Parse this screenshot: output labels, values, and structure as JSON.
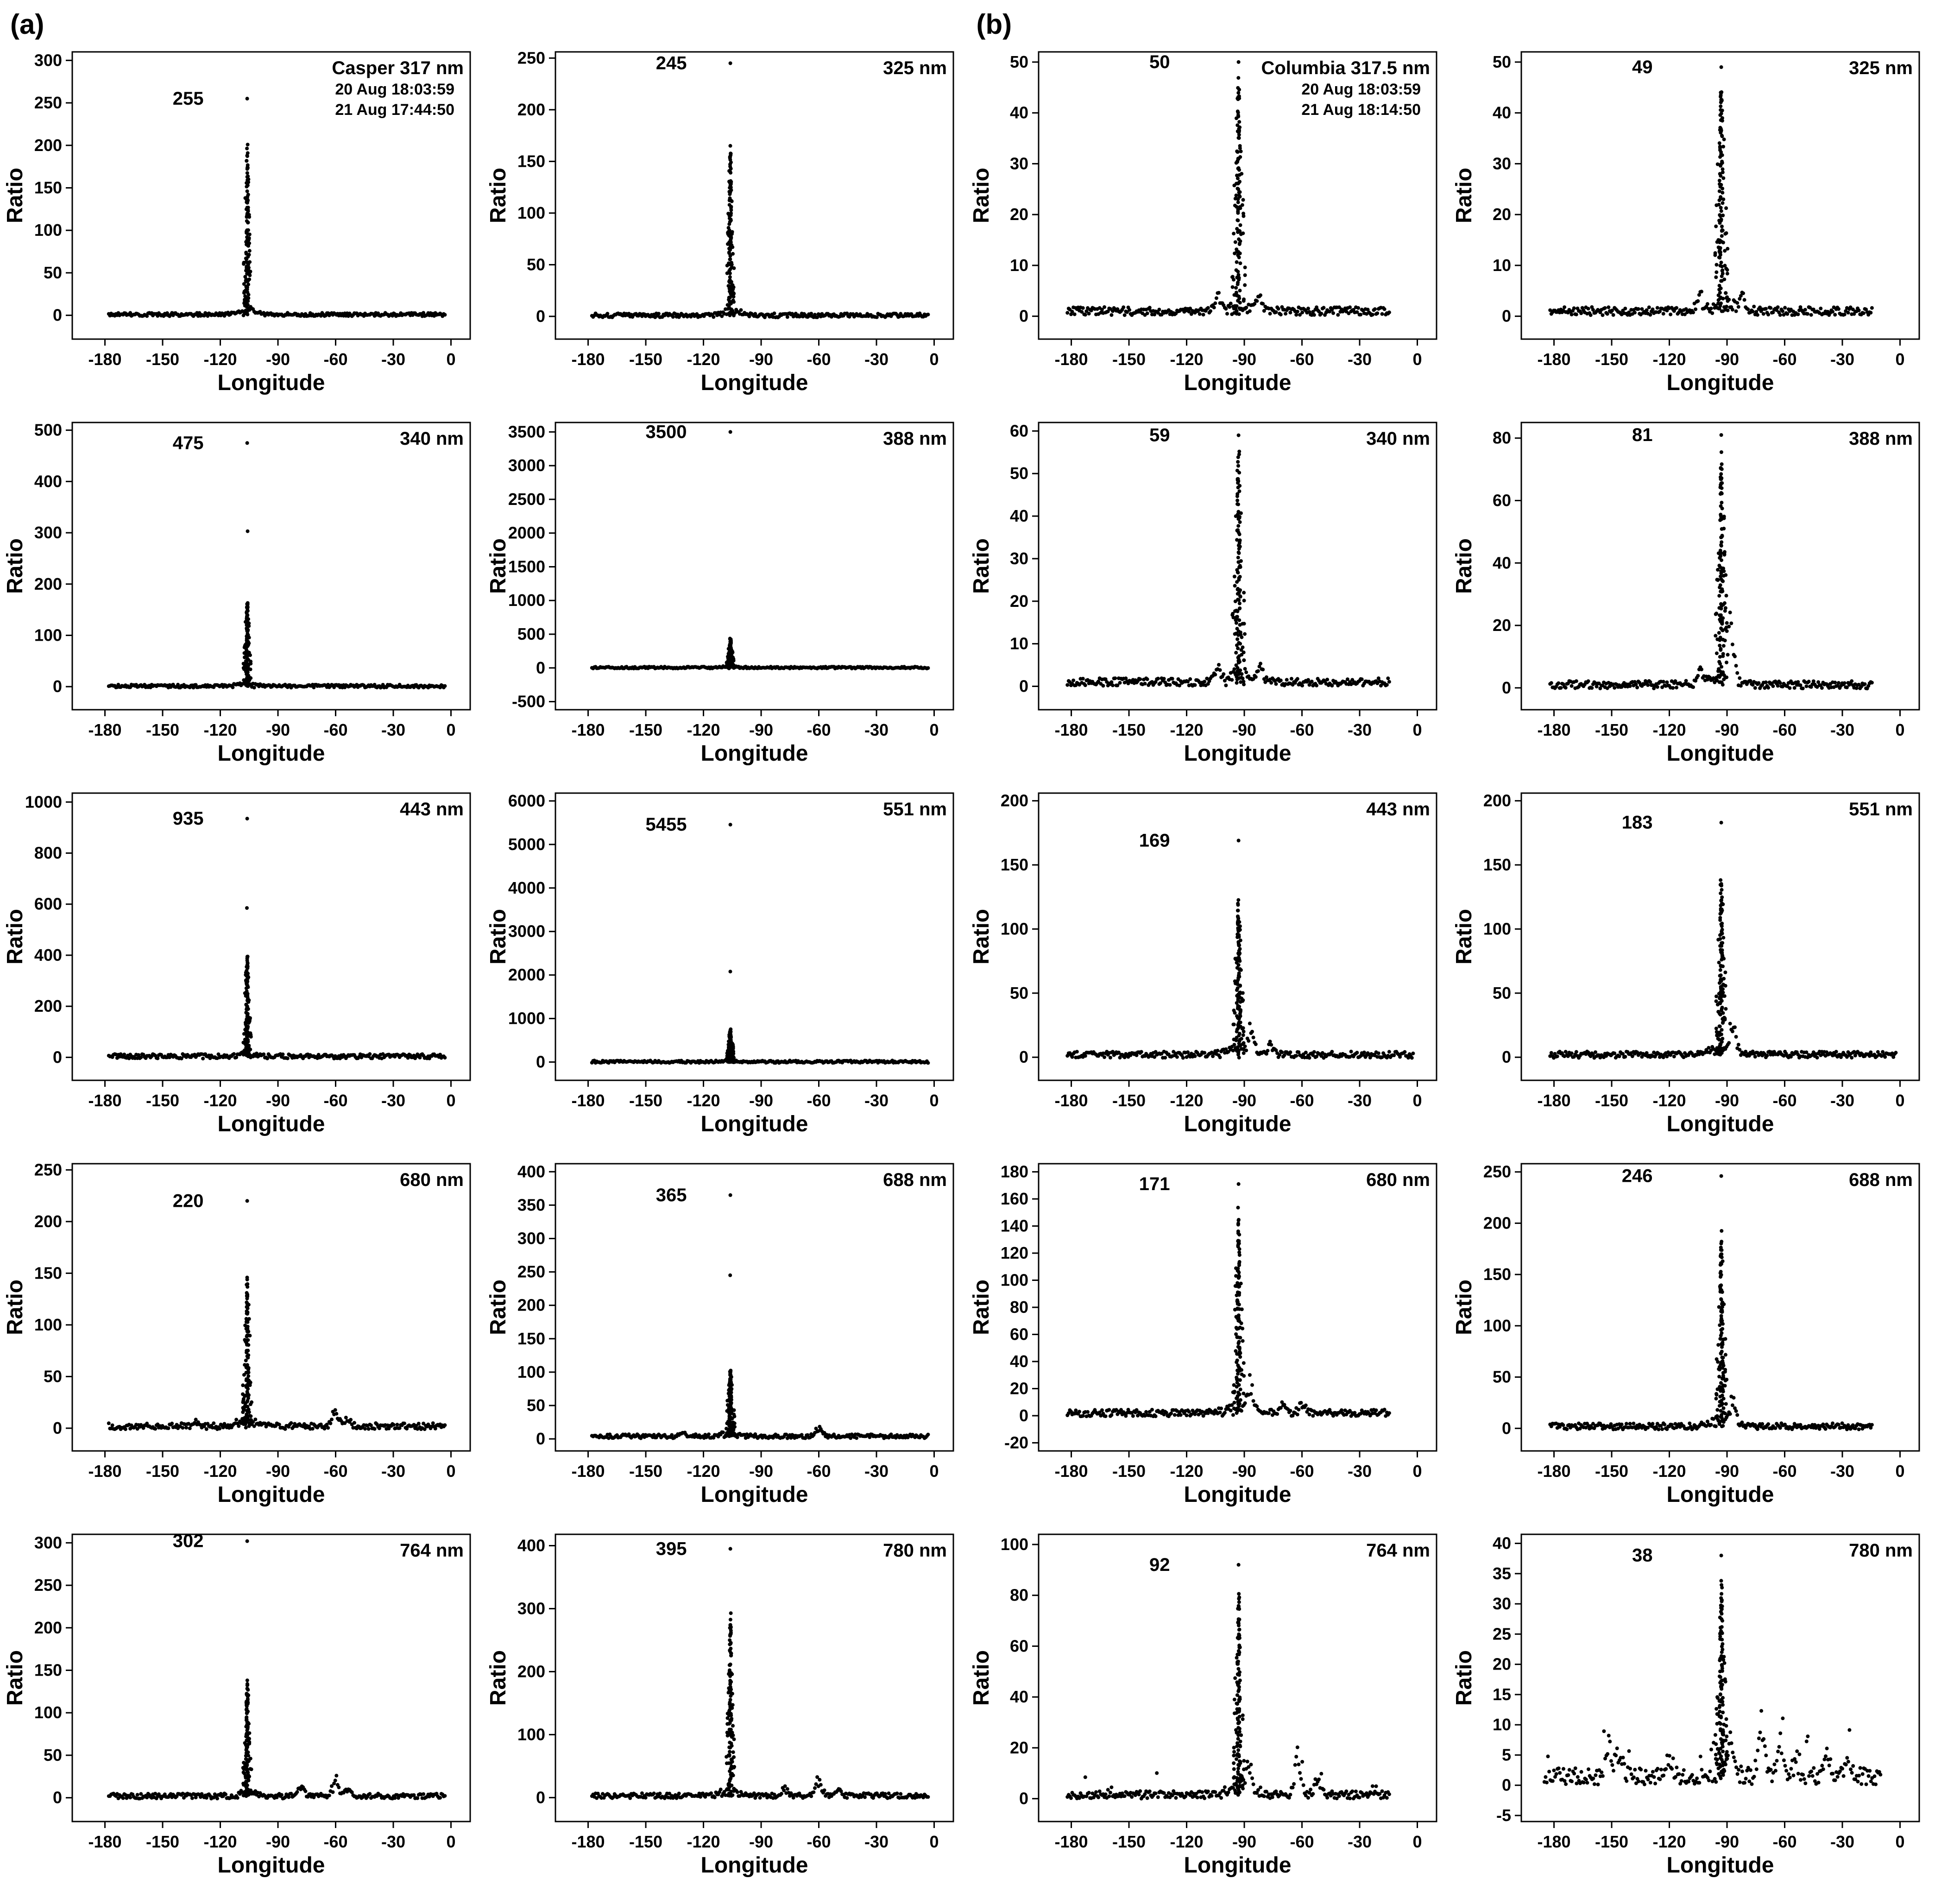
{
  "panels": [
    {
      "label": "(a)"
    },
    {
      "label": "(b)"
    }
  ],
  "axes": {
    "xlabel": "Longitude",
    "ylabel": "Ratio",
    "xticks": [
      -180,
      -150,
      -120,
      -90,
      -60,
      -30,
      0
    ],
    "xlim": [
      -197,
      10
    ]
  },
  "chart_data": [
    {
      "panel": "a",
      "type": "scatter",
      "series_label": "Casper 317 nm",
      "annotations": [
        "20 Aug 18:03:59",
        "21 Aug 17:44:50"
      ],
      "peak_value_label": "255",
      "peak_x": -106,
      "peak_y": 255,
      "peak_w": 1.5,
      "cluster_max": 195,
      "baseline": 1,
      "noise": 2,
      "spikes": 0,
      "isolated": [],
      "bumps": [],
      "x_data": [
        -178,
        -3
      ],
      "ylim": [
        -28,
        310
      ],
      "yticks": [
        0,
        50,
        100,
        150,
        200,
        250,
        300
      ]
    },
    {
      "panel": "a",
      "type": "scatter",
      "series_label": "325 nm",
      "peak_value_label": "245",
      "peak_x": -106,
      "peak_y": 245,
      "peak_w": 1.5,
      "cluster_max": 162,
      "baseline": 1,
      "noise": 2,
      "spikes": 0,
      "isolated": [],
      "bumps": [],
      "x_data": [
        -178,
        -3
      ],
      "ylim": [
        -22,
        256
      ],
      "yticks": [
        0,
        50,
        100,
        150,
        200,
        250
      ]
    },
    {
      "panel": "a",
      "type": "scatter",
      "series_label": "340 nm",
      "peak_value_label": "475",
      "peak_x": -106,
      "peak_y": 475,
      "peak_w": 1.5,
      "cluster_max": 168,
      "baseline": 1,
      "noise": 3,
      "spikes": 0,
      "isolated": [
        303
      ],
      "bumps": [],
      "x_data": [
        -178,
        -3
      ],
      "ylim": [
        -45,
        515
      ],
      "yticks": [
        0,
        100,
        200,
        300,
        400,
        500
      ]
    },
    {
      "panel": "a",
      "type": "scatter",
      "series_label": "388 nm",
      "peak_value_label": "3500",
      "peak_x": -106,
      "peak_y": 3500,
      "peak_w": 1.5,
      "cluster_max": 430,
      "baseline": 5,
      "noise": 14,
      "spikes": 0,
      "isolated": [],
      "bumps": [],
      "x_data": [
        -178,
        -3
      ],
      "ylim": [
        -620,
        3640
      ],
      "yticks": [
        -500,
        0,
        500,
        1000,
        1500,
        2000,
        2500,
        3000,
        3500
      ]
    },
    {
      "panel": "a",
      "type": "scatter",
      "series_label": "443 nm",
      "peak_value_label": "935",
      "peak_x": -106,
      "peak_y": 935,
      "peak_w": 1.6,
      "cluster_max": 395,
      "baseline": 4,
      "noise": 9,
      "spikes": 0,
      "isolated": [
        585
      ],
      "bumps": [],
      "x_data": [
        -178,
        -3
      ],
      "ylim": [
        -90,
        1035
      ],
      "yticks": [
        0,
        200,
        400,
        600,
        800,
        1000
      ]
    },
    {
      "panel": "a",
      "type": "scatter",
      "series_label": "551 nm",
      "peak_value_label": "5455",
      "peak_x": -106,
      "peak_y": 5455,
      "peak_w": 1.5,
      "cluster_max": 730,
      "baseline": 8,
      "noise": 28,
      "spikes": 0,
      "isolated": [
        2080
      ],
      "bumps": [],
      "x_data": [
        -178,
        -3
      ],
      "ylim": [
        -420,
        6180
      ],
      "yticks": [
        0,
        1000,
        2000,
        3000,
        4000,
        5000,
        6000
      ]
    },
    {
      "panel": "a",
      "type": "scatter",
      "series_label": "680 nm",
      "peak_value_label": "220",
      "peak_x": -106,
      "peak_y": 220,
      "peak_w": 1.8,
      "cluster_max": 142,
      "baseline": 2,
      "noise": 3,
      "spikes": 0,
      "isolated": [],
      "bumps": [
        {
          "x": -133,
          "h": 9
        },
        {
          "x": -60,
          "h": 18
        },
        {
          "x": -54,
          "h": 9
        }
      ],
      "x_data": [
        -178,
        -3
      ],
      "ylim": [
        -22,
        256
      ],
      "yticks": [
        0,
        50,
        100,
        150,
        200,
        250
      ]
    },
    {
      "panel": "a",
      "type": "scatter",
      "series_label": "688 nm",
      "peak_value_label": "365",
      "peak_x": -106,
      "peak_y": 365,
      "peak_w": 1.8,
      "cluster_max": 102,
      "baseline": 4,
      "noise": 3,
      "spikes": 0,
      "isolated": [
        245
      ],
      "bumps": [
        {
          "x": -130,
          "h": 7
        },
        {
          "x": -60,
          "h": 20
        }
      ],
      "x_data": [
        -178,
        -3
      ],
      "ylim": [
        -18,
        412
      ],
      "yticks": [
        0,
        50,
        100,
        150,
        200,
        250,
        300,
        350,
        400
      ]
    },
    {
      "panel": "a",
      "type": "scatter",
      "series_label": "764 nm",
      "peak_value_label": "302",
      "peak_x": -106,
      "peak_y": 302,
      "peak_w": 1.7,
      "cluster_max": 138,
      "baseline": 2,
      "noise": 3,
      "spikes": 0,
      "isolated": [],
      "bumps": [
        {
          "x": -78,
          "h": 14
        },
        {
          "x": -60,
          "h": 25
        },
        {
          "x": -54,
          "h": 12
        }
      ],
      "x_data": [
        -178,
        -3
      ],
      "ylim": [
        -28,
        310
      ],
      "yticks": [
        0,
        50,
        100,
        150,
        200,
        250,
        300
      ]
    },
    {
      "panel": "a",
      "type": "scatter",
      "series_label": "780 nm",
      "peak_value_label": "395",
      "peak_x": -106,
      "peak_y": 395,
      "peak_w": 1.6,
      "cluster_max": 285,
      "baseline": 3,
      "noise": 4,
      "spikes": 0,
      "isolated": [],
      "bumps": [
        {
          "x": -78,
          "h": 16
        },
        {
          "x": -60,
          "h": 30
        },
        {
          "x": -50,
          "h": 12
        }
      ],
      "x_data": [
        -178,
        -3
      ],
      "ylim": [
        -38,
        418
      ],
      "yticks": [
        0,
        100,
        200,
        300,
        400
      ]
    },
    {
      "panel": "b",
      "type": "scatter",
      "series_label": "Columbia 317.5 nm",
      "annotations": [
        "20 Aug 18:03:59",
        "21 Aug 18:14:50"
      ],
      "peak_value_label": "50",
      "peak_x": -93,
      "peak_y": 50,
      "peak_w": 2.6,
      "cluster_max": 46,
      "baseline": 1,
      "noise": 0.8,
      "spikes": 0,
      "isolated": [],
      "bumps": [
        {
          "x": -104,
          "h": 3
        },
        {
          "x": -82,
          "h": 3
        }
      ],
      "x_data": [
        -182,
        -14
      ],
      "ylim": [
        -4.5,
        52
      ],
      "yticks": [
        0,
        10,
        20,
        30,
        40,
        50
      ]
    },
    {
      "panel": "b",
      "type": "scatter",
      "series_label": "325 nm",
      "peak_value_label": "49",
      "peak_x": -93,
      "peak_y": 49,
      "peak_w": 2.6,
      "cluster_max": 45,
      "baseline": 1,
      "noise": 0.8,
      "spikes": 0,
      "isolated": [],
      "bumps": [
        {
          "x": -104,
          "h": 3
        },
        {
          "x": -82,
          "h": 3
        }
      ],
      "x_data": [
        -182,
        -14
      ],
      "ylim": [
        -4.5,
        52
      ],
      "yticks": [
        0,
        10,
        20,
        30,
        40,
        50
      ]
    },
    {
      "panel": "b",
      "type": "scatter",
      "series_label": "340 nm",
      "peak_value_label": "59",
      "peak_x": -93,
      "peak_y": 59,
      "peak_w": 2.6,
      "cluster_max": 55,
      "baseline": 1,
      "noise": 0.9,
      "spikes": 0,
      "isolated": [],
      "bumps": [
        {
          "x": -104,
          "h": 4
        },
        {
          "x": -82,
          "h": 4
        }
      ],
      "x_data": [
        -182,
        -14
      ],
      "ylim": [
        -5.5,
        62
      ],
      "yticks": [
        0,
        10,
        20,
        30,
        40,
        50,
        60
      ]
    },
    {
      "panel": "b",
      "type": "scatter",
      "series_label": "388 nm",
      "peak_value_label": "81",
      "peak_x": -93,
      "peak_y": 81,
      "peak_w": 2.4,
      "cluster_max": 74,
      "baseline": 1,
      "noise": 1.2,
      "spikes": 0,
      "isolated": [],
      "bumps": [
        {
          "x": -104,
          "h": 6
        },
        {
          "x": -88,
          "h": 24
        }
      ],
      "x_data": [
        -182,
        -14
      ],
      "ylim": [
        -7,
        85
      ],
      "yticks": [
        0,
        20,
        40,
        60,
        80
      ]
    },
    {
      "panel": "b",
      "type": "scatter",
      "series_label": "443 nm",
      "peak_value_label": "169",
      "peak_x": -93,
      "peak_y": 169,
      "peak_w": 2.2,
      "cluster_max": 124,
      "baseline": 2,
      "noise": 2.5,
      "spikes": 0,
      "isolated": [],
      "bumps": [
        {
          "x": -87,
          "h": 30
        },
        {
          "x": -76,
          "h": 10
        }
      ],
      "x_data": [
        -182,
        -2
      ],
      "ylim": [
        -18,
        206
      ],
      "yticks": [
        0,
        50,
        100,
        150,
        200
      ]
    },
    {
      "panel": "b",
      "type": "scatter",
      "series_label": "551 nm",
      "peak_value_label": "183",
      "peak_x": -93,
      "peak_y": 183,
      "peak_w": 2.2,
      "cluster_max": 140,
      "baseline": 2,
      "noise": 2.5,
      "spikes": 0,
      "isolated": [],
      "bumps": [
        {
          "x": -87,
          "h": 26
        }
      ],
      "x_data": [
        -182,
        -2
      ],
      "ylim": [
        -18,
        206
      ],
      "yticks": [
        0,
        50,
        100,
        150,
        200
      ]
    },
    {
      "panel": "b",
      "type": "scatter",
      "series_label": "680 nm",
      "peak_value_label": "171",
      "peak_x": -93,
      "peak_y": 171,
      "peak_w": 2.2,
      "cluster_max": 148,
      "baseline": 2,
      "noise": 2.5,
      "spikes": 0,
      "isolated": [],
      "bumps": [
        {
          "x": -87,
          "h": 24
        },
        {
          "x": -70,
          "h": 10
        },
        {
          "x": -60,
          "h": 8
        }
      ],
      "x_data": [
        -182,
        -14
      ],
      "ylim": [
        -26,
        186
      ],
      "yticks": [
        -20,
        0,
        20,
        40,
        60,
        80,
        100,
        120,
        140,
        160,
        180
      ]
    },
    {
      "panel": "b",
      "type": "scatter",
      "series_label": "688 nm",
      "peak_value_label": "246",
      "peak_x": -93,
      "peak_y": 246,
      "peak_w": 2.2,
      "cluster_max": 188,
      "baseline": 2,
      "noise": 3,
      "spikes": 0,
      "isolated": [],
      "bumps": [
        {
          "x": -87,
          "h": 26
        }
      ],
      "x_data": [
        -182,
        -14
      ],
      "ylim": [
        -22,
        258
      ],
      "yticks": [
        0,
        50,
        100,
        150,
        200,
        250
      ]
    },
    {
      "panel": "b",
      "type": "scatter",
      "series_label": "764 nm",
      "peak_value_label": "92",
      "peak_x": -93,
      "peak_y": 92,
      "peak_w": 2.2,
      "cluster_max": 80,
      "baseline": 1.5,
      "noise": 1.5,
      "spikes": 8,
      "isolated": [],
      "bumps": [
        {
          "x": -88,
          "h": 18
        },
        {
          "x": -62,
          "h": 22
        },
        {
          "x": -52,
          "h": 10
        }
      ],
      "x_data": [
        -182,
        -14
      ],
      "ylim": [
        -9,
        104
      ],
      "yticks": [
        0,
        20,
        40,
        60,
        80,
        100
      ]
    },
    {
      "panel": "b",
      "type": "scatter",
      "series_label": "780 nm",
      "peak_value_label": "38",
      "peak_x": -93,
      "peak_y": 38,
      "peak_w": 2.4,
      "cluster_max": 33,
      "baseline": 1.5,
      "noise": 1.4,
      "spikes": 6,
      "isolated": [],
      "bumps": [
        {
          "x": -152,
          "h": 8
        },
        {
          "x": -146,
          "h": 6
        },
        {
          "x": -120,
          "h": 4
        },
        {
          "x": -88,
          "h": 8
        },
        {
          "x": -72,
          "h": 11
        },
        {
          "x": -62,
          "h": 9
        },
        {
          "x": -54,
          "h": 5
        },
        {
          "x": -38,
          "h": 5
        },
        {
          "x": -27,
          "h": 3
        }
      ],
      "x_data": [
        -185,
        -10
      ],
      "ylim": [
        -6,
        41.5
      ],
      "yticks": [
        -5,
        0,
        5,
        10,
        15,
        20,
        25,
        30,
        35,
        40
      ]
    }
  ]
}
